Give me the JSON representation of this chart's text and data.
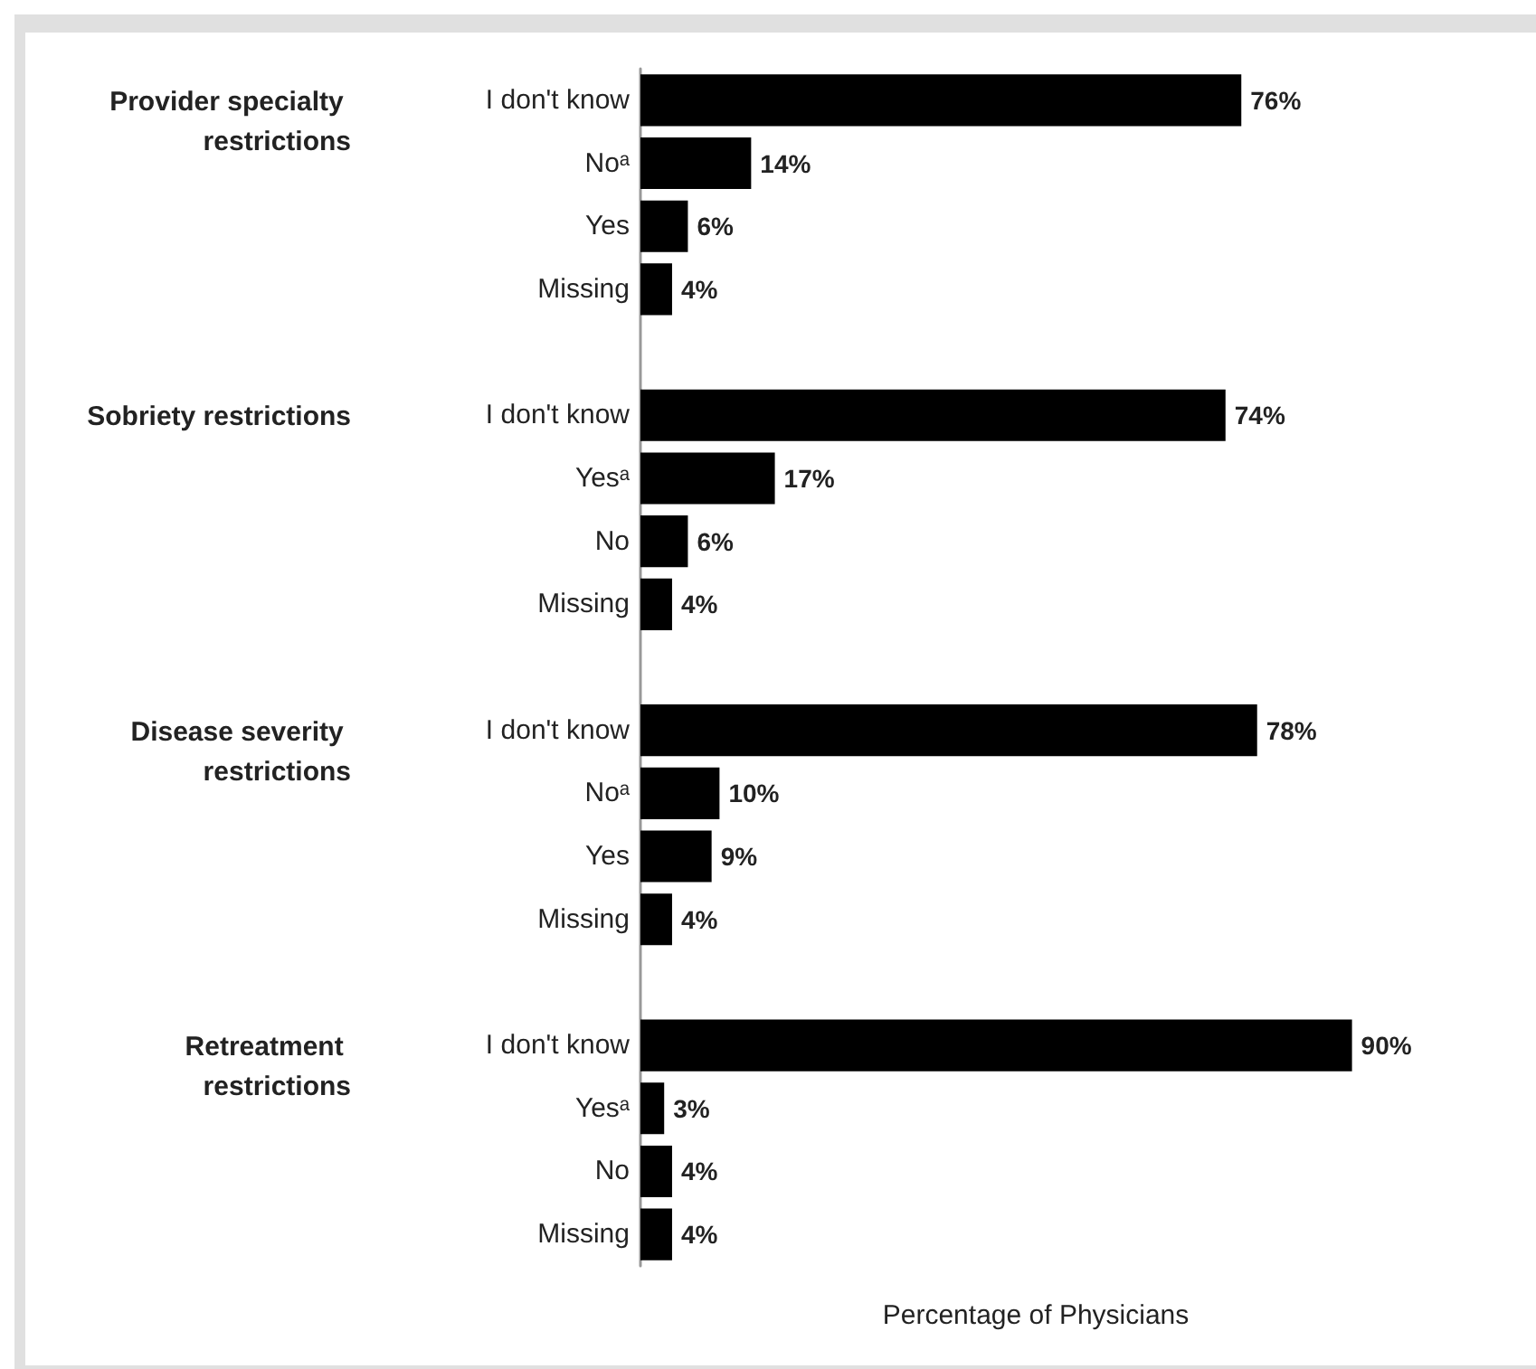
{
  "chart_data": {
    "type": "bar",
    "orientation": "horizontal",
    "xlabel": "Percentage of Physicians",
    "color": "#000000",
    "categories": [
      "I don't know",
      "Noᵃ",
      "Yes",
      "Missing",
      null,
      "I don't know",
      "Yesᵃ",
      "No",
      "Missing",
      null,
      "I don't know",
      "Noᵃ",
      "Yes",
      "Missing",
      null,
      "I don't know",
      "Yesᵃ",
      "No",
      "Missing"
    ],
    "values": [
      76,
      14,
      6,
      4,
      null,
      74,
      17,
      6,
      4,
      null,
      78,
      10,
      9,
      4,
      null,
      90,
      3,
      4,
      4
    ],
    "value_labels": [
      "76%",
      "14%",
      "6%",
      "4%",
      null,
      "74%",
      "17%",
      "6%",
      "4%",
      null,
      "78%",
      "10%",
      "9%",
      "4%",
      null,
      "90%",
      "3%",
      "4%",
      "4%"
    ],
    "annotations": [
      "Provider specialty restrictions",
      "Sobriety restrictions",
      "Disease severity restrictions",
      "Retreatment restrictions"
    ]
  }
}
